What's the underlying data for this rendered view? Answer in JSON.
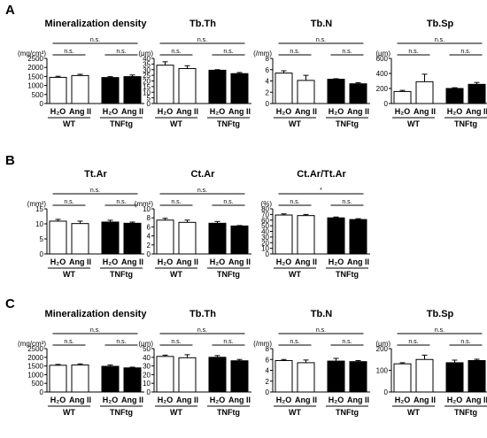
{
  "panel_labels": [
    "A",
    "B",
    "C"
  ],
  "chart_data": [
    {
      "panel": "A",
      "type": "bar",
      "title": "Mineralization density",
      "ylabel": "(mg/cm³)",
      "ylim": [
        0,
        2500
      ],
      "yticks": [
        0,
        500,
        1000,
        1500,
        2000,
        2500
      ],
      "categories": [
        "H₂O",
        "Ang II",
        "H₂O",
        "Ang II"
      ],
      "groups": [
        "WT",
        "TNFtg"
      ],
      "fills": [
        "white",
        "white",
        "black",
        "black"
      ],
      "values": [
        1450,
        1550,
        1440,
        1490
      ],
      "errors": [
        60,
        70,
        50,
        90
      ],
      "significance": [
        {
          "from": 0,
          "to": 3,
          "label": "n.s."
        },
        {
          "from": 0,
          "to": 1,
          "label": "n.s."
        },
        {
          "from": 2,
          "to": 3,
          "label": "n.s."
        }
      ]
    },
    {
      "panel": "A",
      "type": "bar",
      "title": "Tb.Th",
      "ylabel": "(μm)",
      "ylim": [
        0,
        40
      ],
      "yticks": [
        0,
        5,
        10,
        15,
        20,
        25,
        30,
        35,
        40
      ],
      "categories": [
        "H₂O",
        "Ang II",
        "H₂O",
        "Ang II"
      ],
      "groups": [
        "WT",
        "TNFtg"
      ],
      "fills": [
        "white",
        "white",
        "black",
        "black"
      ],
      "values": [
        34,
        31,
        29.5,
        26.5
      ],
      "errors": [
        3,
        2.5,
        0.5,
        1
      ],
      "significance": [
        {
          "from": 0,
          "to": 3,
          "label": "n.s."
        },
        {
          "from": 0,
          "to": 1,
          "label": "n.s."
        },
        {
          "from": 2,
          "to": 3,
          "label": "n.s."
        }
      ]
    },
    {
      "panel": "A",
      "type": "bar",
      "title": "Tb.N",
      "ylabel": "(/mm)",
      "ylim": [
        0,
        8
      ],
      "yticks": [
        0,
        2,
        4,
        6,
        8
      ],
      "categories": [
        "H₂O",
        "Ang II",
        "H₂O",
        "Ang II"
      ],
      "groups": [
        "WT",
        "TNFtg"
      ],
      "fills": [
        "white",
        "white",
        "black",
        "black"
      ],
      "values": [
        5.4,
        4.1,
        4.3,
        3.5
      ],
      "errors": [
        0.4,
        0.9,
        0.1,
        0.2
      ],
      "significance": [
        {
          "from": 0,
          "to": 3,
          "label": "n.s."
        },
        {
          "from": 0,
          "to": 1,
          "label": "n.s."
        },
        {
          "from": 2,
          "to": 3,
          "label": "n.s."
        }
      ]
    },
    {
      "panel": "A",
      "type": "bar",
      "title": "Tb.Sp",
      "ylabel": "(μm)",
      "ylim": [
        0,
        600
      ],
      "yticks": [
        0,
        200,
        400,
        600
      ],
      "categories": [
        "H₂O",
        "Ang II",
        "H₂O",
        "Ang II"
      ],
      "groups": [
        "WT",
        "TNFtg"
      ],
      "fills": [
        "white",
        "white",
        "black",
        "black"
      ],
      "values": [
        160,
        290,
        200,
        255
      ],
      "errors": [
        15,
        100,
        10,
        25
      ],
      "significance": [
        {
          "from": 0,
          "to": 3,
          "label": "n.s."
        },
        {
          "from": 0,
          "to": 1,
          "label": "n.s."
        },
        {
          "from": 2,
          "to": 3,
          "label": "n.s."
        }
      ]
    },
    {
      "panel": "B",
      "type": "bar",
      "title": "Tt.Ar",
      "ylabel": "(mm²)",
      "ylim": [
        0,
        15
      ],
      "yticks": [
        0,
        5,
        10,
        15
      ],
      "categories": [
        "H₂O",
        "Ang II",
        "H₂O",
        "Ang II"
      ],
      "groups": [
        "WT",
        "TNFtg"
      ],
      "fills": [
        "white",
        "white",
        "black",
        "black"
      ],
      "values": [
        10.9,
        10.1,
        10.6,
        10.2
      ],
      "errors": [
        0.6,
        0.8,
        0.6,
        0.4
      ],
      "significance": [
        {
          "from": 0,
          "to": 3,
          "label": "n.s."
        },
        {
          "from": 0,
          "to": 1,
          "label": "n.s."
        },
        {
          "from": 2,
          "to": 3,
          "label": "n.s."
        }
      ]
    },
    {
      "panel": "B",
      "type": "bar",
      "title": "Ct.Ar",
      "ylabel": "(mm²)",
      "ylim": [
        0,
        10
      ],
      "yticks": [
        0,
        2,
        4,
        6,
        8,
        10
      ],
      "categories": [
        "H₂O",
        "Ang II",
        "H₂O",
        "Ang II"
      ],
      "groups": [
        "WT",
        "TNFtg"
      ],
      "fills": [
        "white",
        "white",
        "black",
        "black"
      ],
      "values": [
        7.5,
        7.0,
        6.8,
        6.2
      ],
      "errors": [
        0.4,
        0.5,
        0.4,
        0.1
      ],
      "significance": [
        {
          "from": 0,
          "to": 3,
          "label": "n.s."
        },
        {
          "from": 0,
          "to": 1,
          "label": "n.s."
        },
        {
          "from": 2,
          "to": 3,
          "label": "n.s."
        }
      ]
    },
    {
      "panel": "B",
      "type": "bar",
      "title": "Ct.Ar/Tt.Ar",
      "ylabel": "(%)",
      "ylim": [
        0,
        80
      ],
      "yticks": [
        0,
        10,
        20,
        30,
        40,
        50,
        60,
        70,
        80
      ],
      "categories": [
        "H₂O",
        "Ang II",
        "H₂O",
        "Ang II"
      ],
      "groups": [
        "WT",
        "TNFtg"
      ],
      "fills": [
        "white",
        "white",
        "black",
        "black"
      ],
      "values": [
        69,
        68,
        64,
        61
      ],
      "errors": [
        2,
        2,
        1.5,
        1.5
      ],
      "significance": [
        {
          "from": 0,
          "to": 3,
          "label": "*"
        },
        {
          "from": 0,
          "to": 1,
          "label": "n.s."
        },
        {
          "from": 2,
          "to": 3,
          "label": "n.s."
        }
      ]
    },
    {
      "panel": "C",
      "type": "bar",
      "title": "Mineralization density",
      "ylabel": "(mg/cm³)",
      "ylim": [
        0,
        2500
      ],
      "yticks": [
        0,
        500,
        1000,
        1500,
        2000,
        2500
      ],
      "categories": [
        "H₂O",
        "Ang II",
        "H₂O",
        "Ang II"
      ],
      "groups": [
        "WT",
        "TNFtg"
      ],
      "fills": [
        "white",
        "white",
        "black",
        "black"
      ],
      "values": [
        1540,
        1560,
        1480,
        1390
      ],
      "errors": [
        50,
        60,
        80,
        40
      ],
      "significance": [
        {
          "from": 0,
          "to": 3,
          "label": "n.s."
        },
        {
          "from": 0,
          "to": 1,
          "label": "n.s."
        },
        {
          "from": 2,
          "to": 3,
          "label": "n.s."
        }
      ]
    },
    {
      "panel": "C",
      "type": "bar",
      "title": "Tb.Th",
      "ylabel": "(μm)",
      "ylim": [
        0,
        50
      ],
      "yticks": [
        0,
        10,
        20,
        30,
        40,
        50
      ],
      "categories": [
        "H₂O",
        "Ang II",
        "H₂O",
        "Ang II"
      ],
      "groups": [
        "WT",
        "TNFtg"
      ],
      "fills": [
        "white",
        "white",
        "black",
        "black"
      ],
      "values": [
        41,
        39.5,
        40,
        36
      ],
      "errors": [
        1.5,
        3.5,
        2,
        1.5
      ],
      "significance": [
        {
          "from": 0,
          "to": 3,
          "label": "n.s."
        },
        {
          "from": 0,
          "to": 1,
          "label": "n.s."
        },
        {
          "from": 2,
          "to": 3,
          "label": "n.s."
        }
      ]
    },
    {
      "panel": "C",
      "type": "bar",
      "title": "Tb.N",
      "ylabel": "(/mm)",
      "ylim": [
        0,
        8
      ],
      "yticks": [
        0,
        2,
        4,
        6,
        8
      ],
      "categories": [
        "H₂O",
        "Ang II",
        "H₂O",
        "Ang II"
      ],
      "groups": [
        "WT",
        "TNFtg"
      ],
      "fills": [
        "white",
        "white",
        "black",
        "black"
      ],
      "values": [
        5.8,
        5.4,
        5.7,
        5.6
      ],
      "errors": [
        0.2,
        0.5,
        0.5,
        0.2
      ],
      "significance": [
        {
          "from": 0,
          "to": 3,
          "label": "n.s."
        },
        {
          "from": 0,
          "to": 1,
          "label": "n.s."
        },
        {
          "from": 2,
          "to": 3,
          "label": "n.s."
        }
      ]
    },
    {
      "panel": "C",
      "type": "bar",
      "title": "Tb.Sp",
      "ylabel": "(μm)",
      "ylim": [
        0,
        200
      ],
      "yticks": [
        0,
        100,
        200
      ],
      "categories": [
        "H₂O",
        "Ang II",
        "H₂O",
        "Ang II"
      ],
      "groups": [
        "WT",
        "TNFtg"
      ],
      "fills": [
        "white",
        "white",
        "black",
        "black"
      ],
      "values": [
        130,
        150,
        135,
        145
      ],
      "errors": [
        5,
        20,
        12,
        6
      ],
      "significance": [
        {
          "from": 0,
          "to": 3,
          "label": "n.s."
        },
        {
          "from": 0,
          "to": 1,
          "label": "n.s."
        },
        {
          "from": 2,
          "to": 3,
          "label": "n.s."
        }
      ]
    }
  ]
}
